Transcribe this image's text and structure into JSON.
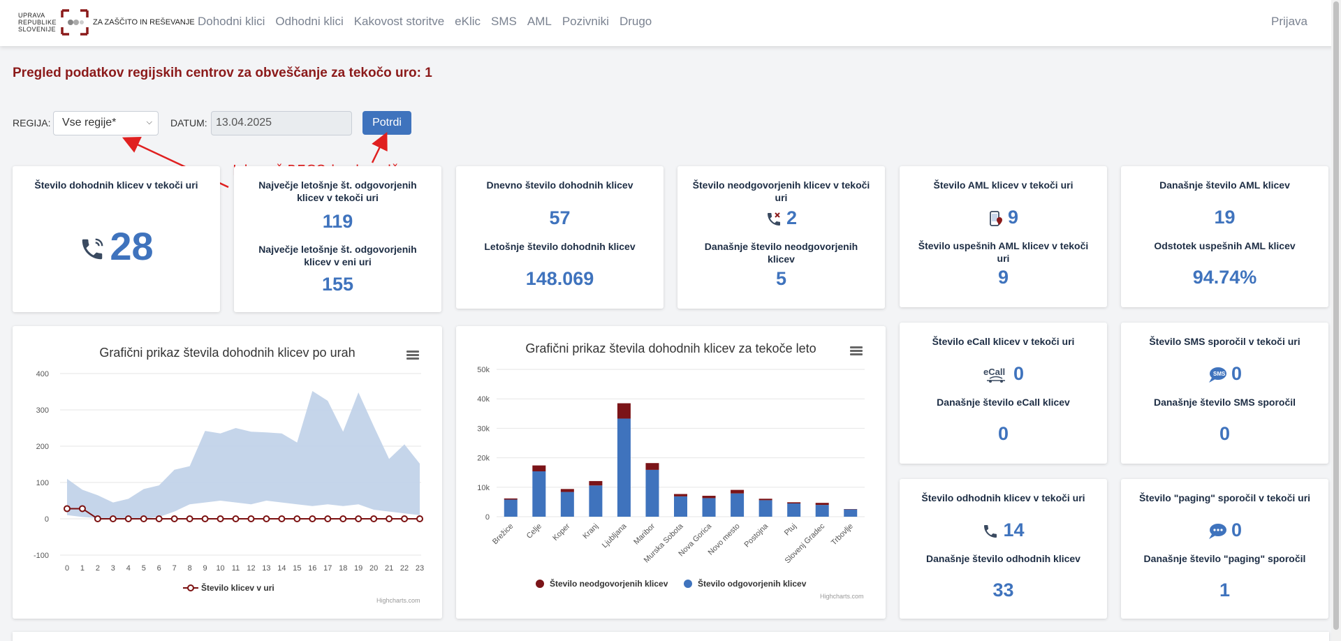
{
  "logo": {
    "left_lines": [
      "UPRAVA",
      "REPUBLIKE",
      "SLOVENIJE"
    ],
    "right_text": "ZA ZAŠČITO IN REŠEVANJE"
  },
  "nav": {
    "items": [
      "Dohodni klici",
      "Odhodni klici",
      "Kakovost storitve",
      "eKlic",
      "SMS",
      "AML",
      "Pozivniki",
      "Drugo"
    ],
    "login": "Prijava"
  },
  "page": {
    "title": "Pregled podatkov regijskih centrov za obveščanje za tekočo uro: 1"
  },
  "filters": {
    "region_label": "REGIJA:",
    "region_value": "Vse regije*",
    "date_label": "DATUM:",
    "date_value": "13.04.2025",
    "submit_label": "Potrdi"
  },
  "annotation": {
    "text": "Izbereš RECO in shraniš",
    "color": "#e02020"
  },
  "cards": {
    "incoming_hour": {
      "label": "Število dohodnih klicev v tekoči uri",
      "value": "28",
      "icon": "phone-ringing-icon"
    },
    "max_answered": {
      "label1": "Največje letošnje št. odgovorjenih klicev v tekoči uri",
      "value1": "119",
      "label2": "Največje letošnje št. odgovorjenih klicev v eni uri",
      "value2": "155"
    },
    "daily_incoming": {
      "label1": "Dnevno število dohodnih klicev",
      "value1": "57",
      "label2": "Letošnje število dohodnih klicev",
      "value2": "148.069"
    },
    "unanswered": {
      "label1": "Število neodgovorjenih klicev v tekoči uri",
      "value1": "2",
      "label2": "Današnje število neodgovorjenih klicev",
      "value2": "5",
      "icon": "missed-call-icon"
    },
    "aml_hour": {
      "label1": "Število AML klicev v tekoči uri",
      "value1": "9",
      "label2": "Število uspešnih AML klicev v tekoči uri",
      "value2": "9",
      "icon": "aml-location-icon"
    },
    "aml_today": {
      "label1": "Današnje število AML klicev",
      "value1": "19",
      "label2": "Odstotek uspešnih AML klicev",
      "value2": "94.74%"
    },
    "ecall": {
      "label1": "Število eCall klicev v tekoči uri",
      "value1": "0",
      "label2": "Današnje število eCall klicev",
      "value2": "0",
      "icon": "ecall-icon",
      "icon_text": "eCall"
    },
    "sms": {
      "label1": "Število SMS sporočil v tekoči uri",
      "value1": "0",
      "label2": "Današnje število SMS sporočil",
      "value2": "0",
      "icon": "sms-bubble-icon",
      "icon_text": "SMS"
    },
    "outgoing": {
      "label1": "Število odhodnih klicev v tekoči uri",
      "value1": "14",
      "label2": "Današnje število odhodnih klicev",
      "value2": "33",
      "icon": "phone-icon"
    },
    "paging": {
      "label1": "Število \"paging\" sporočil v tekoči uri",
      "value1": "0",
      "label2": "Današnje število \"paging\" sporočil",
      "value2": "1",
      "icon": "paging-bubble-icon"
    }
  },
  "chart_data": [
    {
      "type": "line",
      "title": "Grafični prikaz števila dohodnih klicev po urah",
      "x": [
        0,
        1,
        2,
        3,
        4,
        5,
        6,
        7,
        8,
        9,
        10,
        11,
        12,
        13,
        14,
        15,
        16,
        17,
        18,
        19,
        20,
        21,
        22,
        23
      ],
      "ylim": [
        -100,
        400
      ],
      "yticks": [
        -100,
        0,
        100,
        200,
        300,
        400
      ],
      "grid": true,
      "series": [
        {
          "name": "Število klicev v uri",
          "type": "line",
          "color": "#7b1010",
          "values": [
            28,
            28,
            0,
            0,
            0,
            0,
            0,
            0,
            0,
            0,
            0,
            0,
            0,
            0,
            0,
            0,
            0,
            0,
            0,
            0,
            0,
            0,
            0,
            0
          ]
        }
      ],
      "range": {
        "type": "arearange",
        "color": "#c2d3e9",
        "low": [
          10,
          5,
          2,
          0,
          0,
          0,
          5,
          20,
          40,
          45,
          50,
          45,
          40,
          50,
          45,
          40,
          35,
          40,
          35,
          40,
          25,
          20,
          15,
          10
        ],
        "high": [
          110,
          80,
          65,
          45,
          55,
          82,
          92,
          135,
          145,
          242,
          235,
          250,
          240,
          238,
          235,
          210,
          352,
          325,
          240,
          348,
          255,
          165,
          205,
          152
        ]
      },
      "legend": "bottom",
      "credit": "Highcharts.com"
    },
    {
      "type": "bar",
      "stacked": true,
      "title": "Grafični prikaz števila dohodnih klicev za tekoče leto",
      "categories": [
        "Brežice",
        "Celje",
        "Koper",
        "Kranj",
        "Ljubljana",
        "Maribor",
        "Murska Sobota",
        "Nova Gorica",
        "Novo mesto",
        "Postojna",
        "Ptuj",
        "Slovenj Gradec",
        "Trbovlje"
      ],
      "ylim": [
        0,
        50000
      ],
      "yticks": [
        "0",
        "10k",
        "20k",
        "30k",
        "40k",
        "50k"
      ],
      "grid": true,
      "series": [
        {
          "name": "Število neodgovorjenih klicev",
          "color": "#7b1418",
          "values": [
            400,
            2000,
            1000,
            1500,
            5200,
            2300,
            800,
            800,
            1200,
            500,
            400,
            700,
            100
          ]
        },
        {
          "name": "Število odgovorjenih klicev",
          "color": "#3f73bd",
          "values": [
            5800,
            15400,
            8400,
            10600,
            33300,
            15900,
            6900,
            6300,
            7900,
            5600,
            4500,
            4000,
            2500
          ]
        }
      ],
      "legend": "bottom",
      "credit": "Highcharts.com"
    }
  ]
}
